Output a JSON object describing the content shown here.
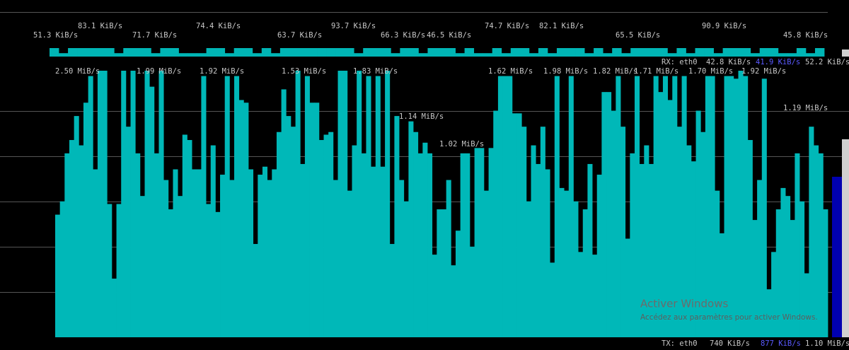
{
  "rx_graph": {
    "labels_top": [
      "83.1 KiB/s",
      "74.4 KiB/s",
      "93.7 KiB/s",
      "74.7 KiB/s",
      "82.1 KiB/s",
      "90.9 KiB/s"
    ],
    "labels_bottom": [
      "51.3 KiB/s",
      "71.7 KiB/s",
      "63.7 KiB/s",
      "66.3 KiB/s",
      "46.5 KiB/s",
      "65.5 KiB/s",
      "45.8 KiB/s"
    ],
    "values": [
      100,
      40,
      100,
      100,
      100,
      100,
      100,
      40,
      100,
      100,
      100,
      40,
      100,
      100,
      40,
      40,
      40,
      100,
      100,
      40,
      100,
      100,
      40,
      100,
      40,
      100,
      100,
      100,
      100,
      100,
      100,
      100,
      100,
      40,
      100,
      100,
      100,
      40,
      100,
      100,
      40,
      100,
      100,
      100,
      40,
      100,
      40,
      40,
      100,
      40,
      100,
      100,
      40,
      100,
      40,
      100,
      100,
      100,
      40,
      100,
      40,
      100,
      40,
      100,
      100,
      100,
      100,
      40,
      100,
      40,
      100,
      100,
      40,
      100,
      100,
      100,
      40,
      100,
      100,
      40,
      40,
      100,
      40,
      100
    ]
  },
  "rx_status": {
    "label": "RX: eth0",
    "values": [
      "42.8 KiB/s",
      "41.9 KiB/s",
      "52.2 KiB/s"
    ]
  },
  "tx_graph": {
    "labels": [
      "2.50 MiB/s",
      "1.99 MiB/s",
      "1.92 MiB/s",
      "1.53 MiB/s",
      "1.83 MiB/s",
      "1.62 MiB/s",
      "1.98 MiB/s",
      "1.82 MiB/s",
      "1.71 MiB/s",
      "1.70 MiB/s",
      "1.92 MiB/s",
      "1.14 MiB/s",
      "1.02 MiB/s",
      "1.19 MiB/s"
    ],
    "values": [
      46,
      51,
      69,
      74,
      83,
      72,
      88,
      98,
      63,
      100,
      100,
      50,
      22,
      50,
      100,
      79,
      100,
      69,
      53,
      100,
      94,
      69,
      100,
      59,
      48,
      63,
      53,
      76,
      74,
      63,
      63,
      98,
      50,
      72,
      47,
      61,
      98,
      59,
      98,
      89,
      88,
      63,
      35,
      61,
      64,
      59,
      63,
      77,
      93,
      83,
      79,
      100,
      65,
      98,
      88,
      88,
      74,
      76,
      77,
      59,
      100,
      100,
      55,
      72,
      100,
      69,
      98,
      64,
      98,
      64,
      100,
      35,
      83,
      59,
      51,
      81,
      77,
      69,
      73,
      69,
      31,
      48,
      48,
      59,
      27,
      40,
      69,
      69,
      34,
      71,
      71,
      55,
      71,
      85,
      98,
      98,
      98,
      84,
      84,
      79,
      51,
      72,
      65,
      79,
      63,
      28,
      98,
      56,
      55,
      98,
      51,
      32,
      48,
      65,
      31,
      61,
      92,
      92,
      85,
      98,
      79,
      37,
      69,
      98,
      65,
      72,
      65,
      98,
      92,
      98,
      89,
      98,
      79,
      98,
      72,
      66,
      85,
      77,
      98,
      98,
      55,
      39,
      98,
      98,
      97,
      100,
      98,
      74,
      44,
      59,
      97,
      18,
      32,
      48,
      56,
      53,
      44,
      69,
      51,
      24,
      79,
      72,
      69,
      48
    ]
  },
  "tx_status": {
    "label": "TX: eth0",
    "values": [
      "740 KiB/s",
      "877 KiB/s",
      "1.10 MiB/s"
    ]
  },
  "watermark": {
    "title": "Activer Windows",
    "text": "Accédez aux paramètres pour activer Windows."
  }
}
